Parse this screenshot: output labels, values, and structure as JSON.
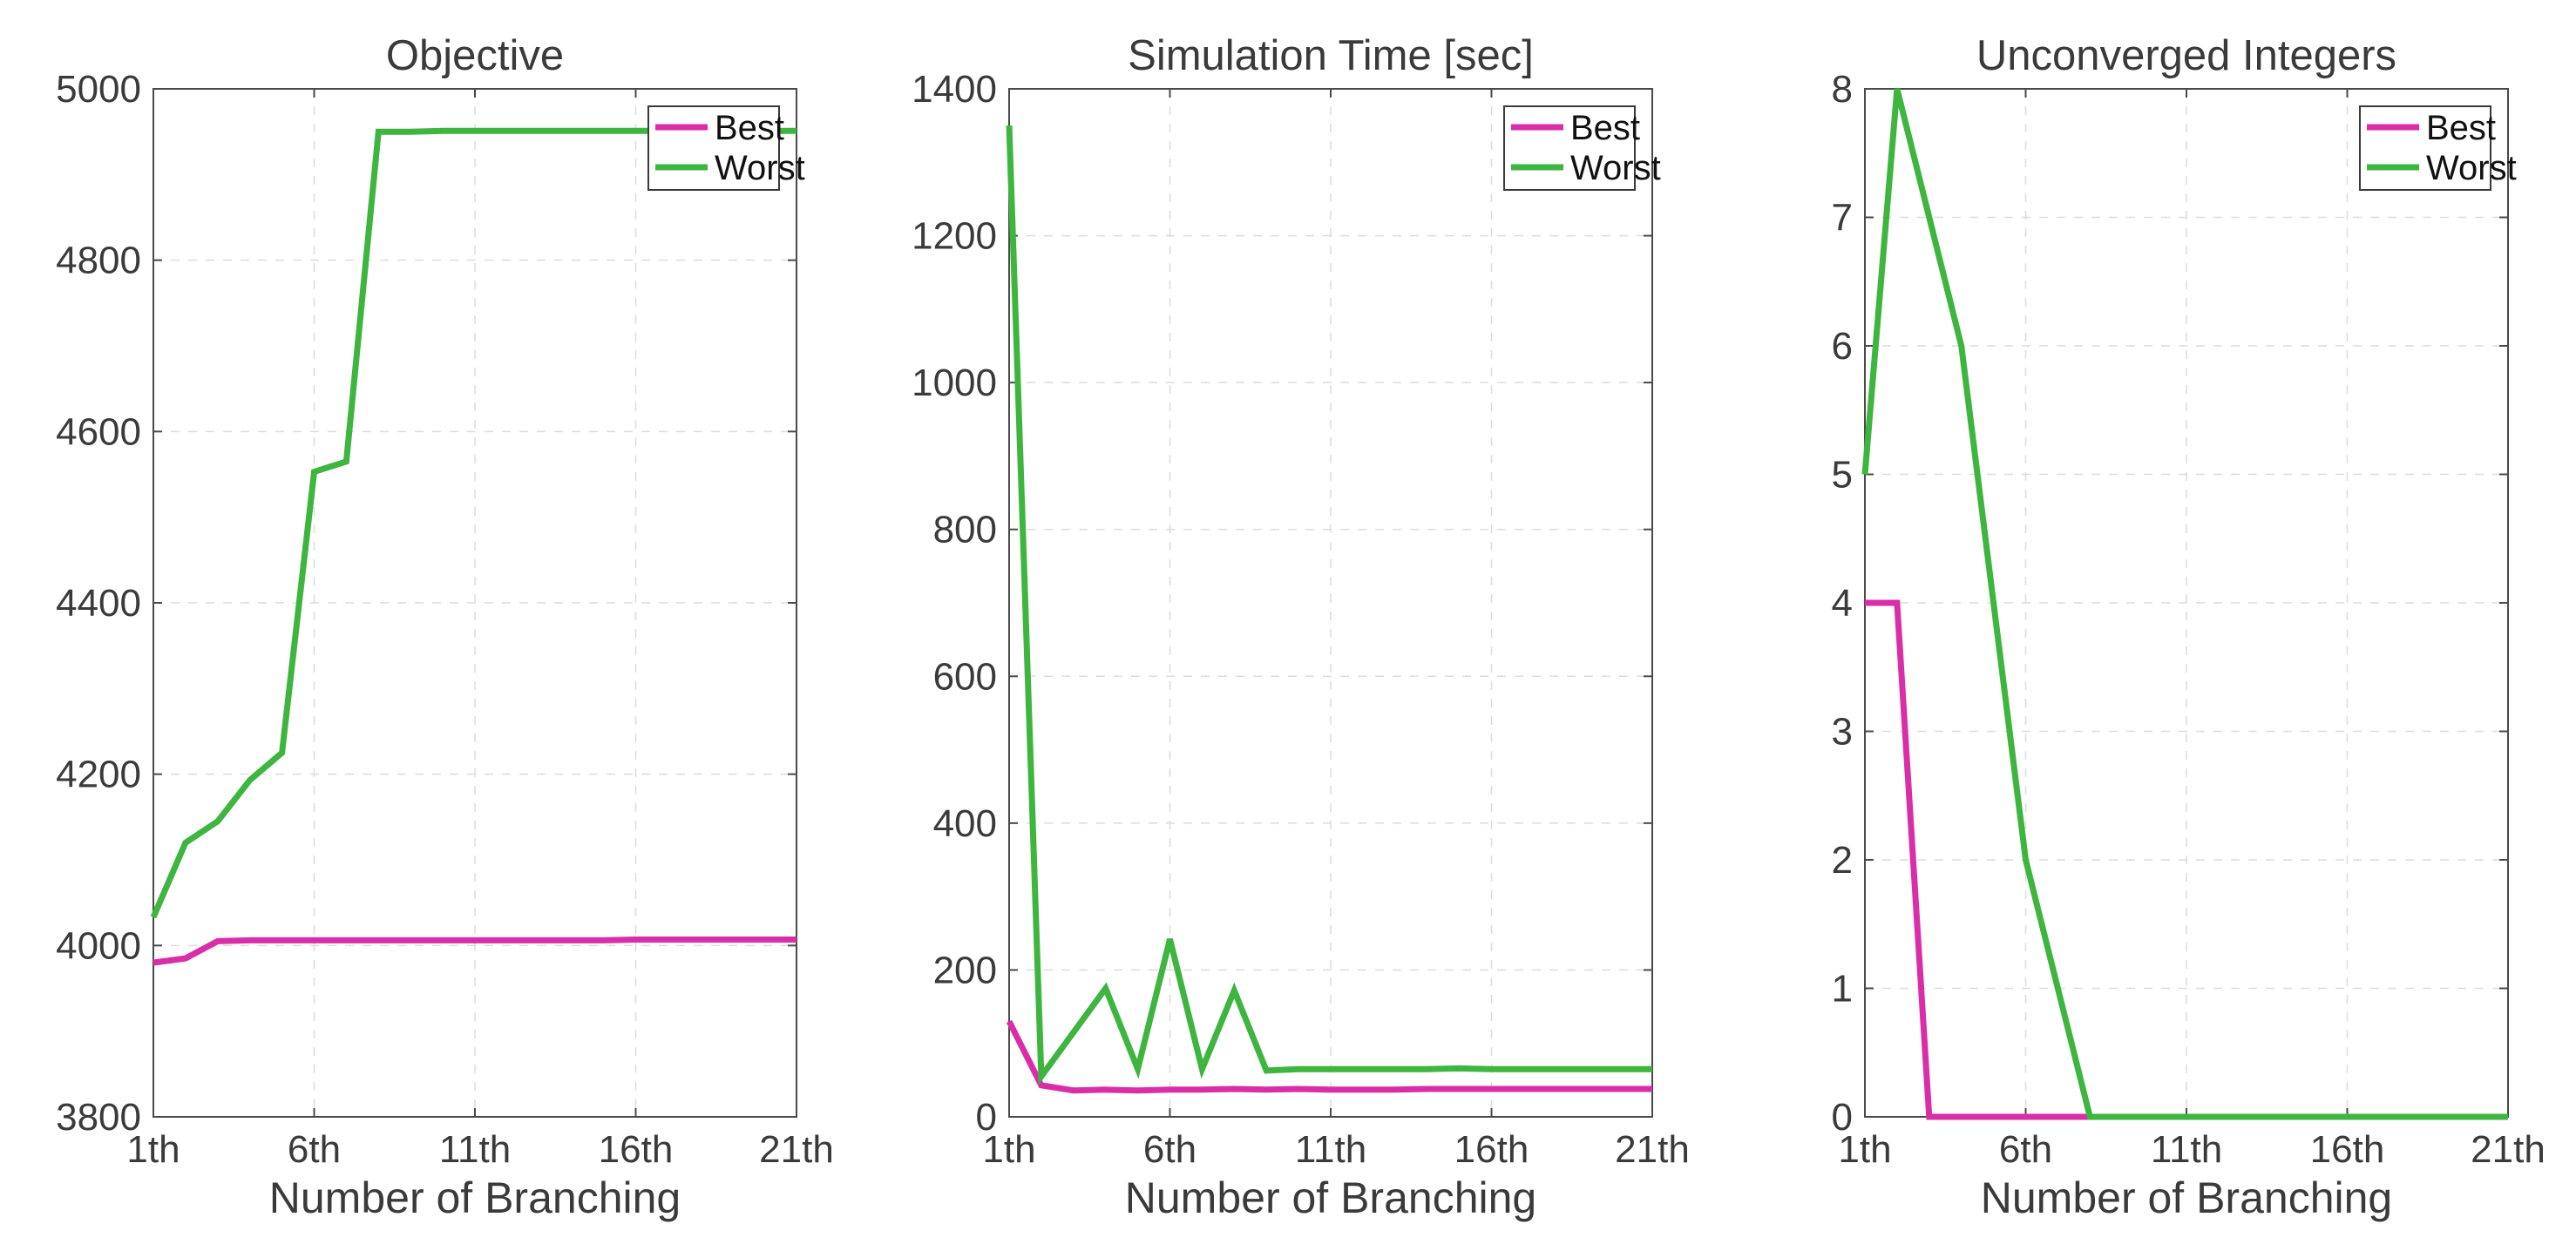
{
  "colors": {
    "best": "#d92ea8",
    "worst": "#3db53f"
  },
  "chart_data": [
    {
      "type": "line",
      "title": "Objective",
      "xlabel": "Number of Branching",
      "ylabel": "",
      "xlim": [
        1,
        21
      ],
      "ylim": [
        3800,
        5000
      ],
      "xticks": [
        1,
        6,
        11,
        16,
        21
      ],
      "xtick_labels": [
        "1th",
        "6th",
        "11th",
        "16th",
        "21th"
      ],
      "yticks": [
        3800,
        4000,
        4200,
        4400,
        4600,
        4800,
        5000
      ],
      "ytick_labels": [
        "3800",
        "4000",
        "4200",
        "4400",
        "4600",
        "4800",
        "5000"
      ],
      "grid": true,
      "legend_position": "top-right",
      "x": [
        1,
        2,
        3,
        4,
        5,
        6,
        7,
        8,
        9,
        10,
        11,
        12,
        13,
        14,
        15,
        16,
        17,
        18,
        19,
        20,
        21
      ],
      "series": [
        {
          "name": "Best",
          "color_key": "best",
          "values": [
            3980,
            3985,
            4005,
            4006,
            4006,
            4006,
            4006,
            4006,
            4006,
            4006,
            4006,
            4006,
            4006,
            4006,
            4006,
            4007,
            4007,
            4007,
            4007,
            4007,
            4007
          ]
        },
        {
          "name": "Worst",
          "color_key": "worst",
          "values": [
            4033,
            4120,
            4145,
            4193,
            4225,
            4553,
            4565,
            4950,
            4950,
            4951,
            4951,
            4951,
            4951,
            4951,
            4951,
            4951,
            4951,
            4951,
            4951,
            4951,
            4951
          ]
        }
      ]
    },
    {
      "type": "line",
      "title": "Simulation Time [sec]",
      "xlabel": "Number of Branching",
      "ylabel": "",
      "xlim": [
        1,
        21
      ],
      "ylim": [
        0,
        1400
      ],
      "xticks": [
        1,
        6,
        11,
        16,
        21
      ],
      "xtick_labels": [
        "1th",
        "6th",
        "11th",
        "16th",
        "21th"
      ],
      "yticks": [
        0,
        200,
        400,
        600,
        800,
        1000,
        1200,
        1400
      ],
      "ytick_labels": [
        "0",
        "200",
        "400",
        "600",
        "800",
        "1000",
        "1200",
        "1400"
      ],
      "grid": true,
      "legend_position": "top-right",
      "x": [
        1,
        2,
        3,
        4,
        5,
        6,
        7,
        8,
        9,
        10,
        11,
        12,
        13,
        14,
        15,
        16,
        17,
        18,
        19,
        20,
        21
      ],
      "series": [
        {
          "name": "Best",
          "color_key": "best",
          "values": [
            130,
            43,
            36,
            37,
            36,
            37,
            37,
            38,
            37,
            38,
            37,
            37,
            37,
            38,
            38,
            38,
            38,
            38,
            38,
            38,
            38
          ]
        },
        {
          "name": "Worst",
          "color_key": "worst",
          "values": [
            1350,
            55,
            115,
            175,
            65,
            242,
            65,
            172,
            63,
            65,
            65,
            65,
            65,
            65,
            66,
            65,
            65,
            65,
            65,
            65,
            65
          ]
        }
      ]
    },
    {
      "type": "line",
      "title": "Unconverged Integers",
      "xlabel": "Number of Branching",
      "ylabel": "",
      "xlim": [
        1,
        21
      ],
      "ylim": [
        0,
        8
      ],
      "xticks": [
        1,
        6,
        11,
        16,
        21
      ],
      "xtick_labels": [
        "1th",
        "6th",
        "11th",
        "16th",
        "21th"
      ],
      "yticks": [
        0,
        1,
        2,
        3,
        4,
        5,
        6,
        7,
        8
      ],
      "ytick_labels": [
        "0",
        "1",
        "2",
        "3",
        "4",
        "5",
        "6",
        "7",
        "8"
      ],
      "grid": true,
      "legend_position": "top-right",
      "x": [
        1,
        2,
        3,
        4,
        5,
        6,
        7,
        8,
        9,
        10,
        11,
        12,
        13,
        14,
        15,
        16,
        17,
        18,
        19,
        20,
        21
      ],
      "series": [
        {
          "name": "Best",
          "color_key": "best",
          "values": [
            4,
            4,
            0,
            0,
            0,
            0,
            0,
            0,
            0,
            0,
            0,
            0,
            0,
            0,
            0,
            0,
            0,
            0,
            0,
            0,
            0
          ]
        },
        {
          "name": "Worst",
          "color_key": "worst",
          "values": [
            5,
            8,
            7,
            6,
            4,
            2,
            1,
            0,
            0,
            0,
            0,
            0,
            0,
            0,
            0,
            0,
            0,
            0,
            0,
            0,
            0
          ]
        }
      ]
    }
  ]
}
